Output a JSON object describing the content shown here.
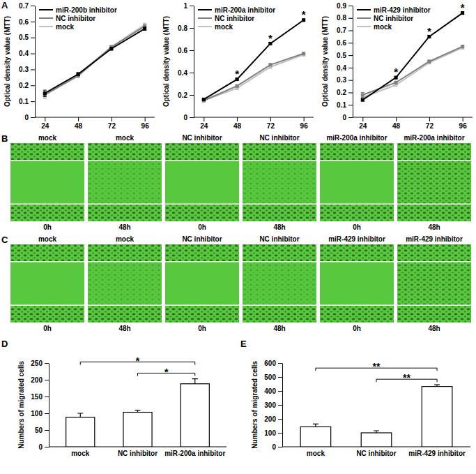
{
  "panel_labels": [
    "A",
    "B",
    "C",
    "D",
    "E"
  ],
  "chart_data": [
    {
      "type": "line",
      "y_label": "Optical density value (MTT)",
      "categories": [
        "24",
        "48",
        "72",
        "96"
      ],
      "ylim": [
        0,
        0.7
      ],
      "yticks": [
        0,
        0.1,
        0.2,
        0.3,
        0.4,
        0.5,
        0.6,
        0.7
      ],
      "legend": "upper left",
      "marker": "square",
      "series": [
        {
          "name": "miR-200b inhibitor",
          "color": "#000000",
          "values": [
            0.15,
            0.27,
            0.43,
            0.555
          ],
          "errors": [
            0.02,
            0.01,
            0.01,
            0.01
          ]
        },
        {
          "name": "NC inhibitor",
          "color": "#808080",
          "values": [
            0.14,
            0.26,
            0.44,
            0.57
          ],
          "errors": [
            0.02,
            0.01,
            0.01,
            0.01
          ]
        },
        {
          "name": "mock",
          "color": "#c0c0c0",
          "values": [
            0.15,
            0.27,
            0.44,
            0.58
          ],
          "errors": [
            0.01,
            0.01,
            0.01,
            0.01
          ]
        }
      ]
    },
    {
      "type": "line",
      "y_label": "Optical density value (MTT)",
      "categories": [
        "24",
        "48",
        "72",
        "96"
      ],
      "ylim": [
        0,
        1
      ],
      "yticks": [
        0,
        0.2,
        0.4,
        0.6,
        0.8,
        1
      ],
      "legend": "upper left",
      "marker": "square",
      "series": [
        {
          "name": "miR-200a inhibitor",
          "color": "#000000",
          "values": [
            0.16,
            0.34,
            0.66,
            0.87
          ],
          "errors": [
            0.01,
            0.01,
            0.01,
            0.01
          ],
          "significance": [
            null,
            "*",
            "*",
            "*"
          ]
        },
        {
          "name": "NC inhibitor",
          "color": "#808080",
          "values": [
            0.15,
            0.28,
            0.47,
            0.57
          ],
          "errors": [
            0.01,
            0.01,
            0.01,
            0.01
          ]
        },
        {
          "name": "mock",
          "color": "#c0c0c0",
          "values": [
            0.15,
            0.26,
            0.45,
            0.56
          ],
          "errors": [
            0.01,
            0.01,
            0.01,
            0.01
          ]
        }
      ]
    },
    {
      "type": "line",
      "y_label": "Optical density value (MTT)",
      "categories": [
        "24",
        "48",
        "72",
        "96"
      ],
      "ylim": [
        0,
        0.9
      ],
      "yticks": [
        0,
        0.1,
        0.2,
        0.3,
        0.4,
        0.5,
        0.6,
        0.7,
        0.8,
        0.9
      ],
      "legend": "upper left",
      "marker": "square",
      "series": [
        {
          "name": "miR-429 inhibitor",
          "color": "#000000",
          "values": [
            0.14,
            0.32,
            0.65,
            0.84
          ],
          "errors": [
            0.01,
            0.01,
            0.01,
            0.01
          ],
          "significance": [
            null,
            "*",
            "*",
            "*"
          ]
        },
        {
          "name": "NC inhibitor",
          "color": "#808080",
          "values": [
            0.18,
            0.28,
            0.45,
            0.57
          ],
          "errors": [
            0.02,
            0.01,
            0.01,
            0.01
          ]
        },
        {
          "name": "mock",
          "color": "#c0c0c0",
          "values": [
            0.16,
            0.26,
            0.44,
            0.56
          ],
          "errors": [
            0.02,
            0.01,
            0.01,
            0.01
          ]
        }
      ]
    },
    {
      "type": "bar",
      "y_label": "Numbers of migrated cells",
      "categories": [
        "mock",
        "NC inhibitor",
        "miR-200a inhibitor"
      ],
      "values": [
        88,
        103,
        188
      ],
      "errors": [
        12,
        6,
        15
      ],
      "color": "#ffffff",
      "ylim": [
        0,
        250
      ],
      "yticks": [
        0,
        50,
        100,
        150,
        200,
        250
      ],
      "comparisons": [
        {
          "from": "mock",
          "to": "miR-200a inhibitor",
          "label": "*"
        },
        {
          "from": "NC inhibitor",
          "to": "miR-200a inhibitor",
          "label": "*"
        }
      ]
    },
    {
      "type": "bar",
      "y_label": "Numbers of migrated cells",
      "categories": [
        "mock",
        "NC inhibitor",
        "miR-429 inhibitor"
      ],
      "values": [
        143,
        100,
        432
      ],
      "errors": [
        20,
        15,
        12
      ],
      "color": "#ffffff",
      "ylim": [
        0,
        600
      ],
      "yticks": [
        0,
        100,
        200,
        300,
        400,
        500,
        600
      ],
      "comparisons": [
        {
          "from": "mock",
          "to": "miR-429 inhibitor",
          "label": "**"
        },
        {
          "from": "NC inhibitor",
          "to": "miR-429 inhibitor",
          "label": "**"
        }
      ]
    }
  ],
  "micrographs": [
    {
      "tiles": [
        {
          "treatment": "mock",
          "time": "0h"
        },
        {
          "treatment": "mock",
          "time": "48h"
        },
        {
          "treatment": "NC inhibitor",
          "time": "0h"
        },
        {
          "treatment": "NC inhibitor",
          "time": "48h"
        },
        {
          "treatment": "miR-200a inhibitor",
          "time": "0h"
        },
        {
          "treatment": "miR-200a inhibitor",
          "time": "48h"
        }
      ]
    },
    {
      "tiles": [
        {
          "treatment": "mock",
          "time": "0h"
        },
        {
          "treatment": "mock",
          "time": "48h"
        },
        {
          "treatment": "NC inhibitor",
          "time": "0h"
        },
        {
          "treatment": "NC inhibitor",
          "time": "48h"
        },
        {
          "treatment": "miR-429 inhibitor",
          "time": "0h"
        },
        {
          "treatment": "miR-429 inhibitor",
          "time": "48h"
        }
      ]
    }
  ]
}
